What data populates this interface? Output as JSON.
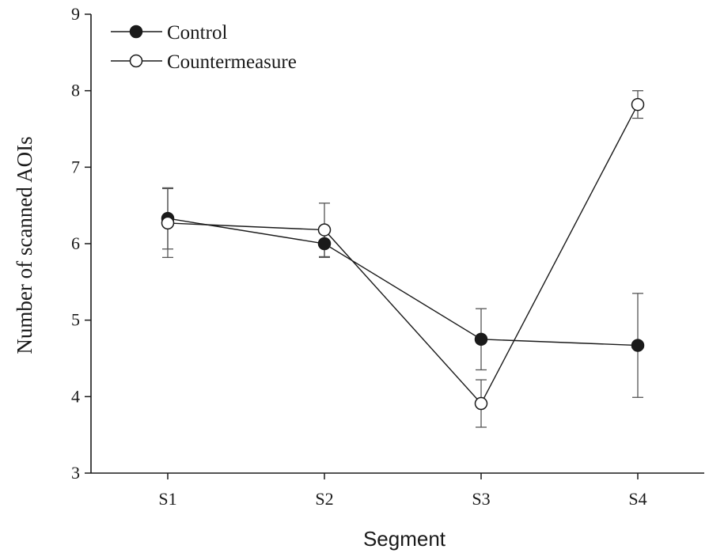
{
  "chart_data": {
    "type": "line",
    "xlabel": "Segment",
    "ylabel": "Number of scanned AOIs",
    "categories": [
      "S1",
      "S2",
      "S3",
      "S4"
    ],
    "ylim": [
      3,
      9
    ],
    "yticks": [
      3,
      4,
      5,
      6,
      7,
      8,
      9
    ],
    "grid": false,
    "legend_position": "top-left",
    "series": [
      {
        "name": "Control",
        "marker": "filled-circle",
        "values": [
          6.33,
          6.0,
          4.75,
          4.67
        ],
        "error": [
          0.4,
          0.18,
          0.4,
          0.68
        ]
      },
      {
        "name": "Countermeasure",
        "marker": "open-circle",
        "values": [
          6.27,
          6.18,
          3.91,
          7.82
        ],
        "error": [
          0.45,
          0.35,
          0.31,
          0.18
        ]
      }
    ]
  }
}
